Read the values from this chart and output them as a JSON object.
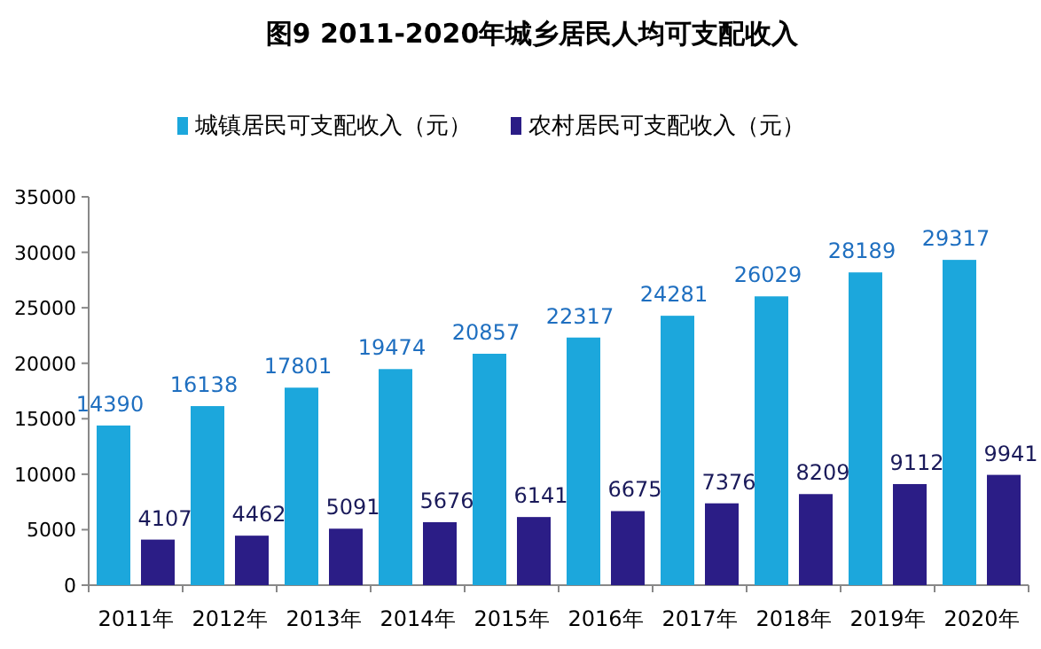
{
  "chart_data": {
    "type": "bar",
    "title": "图9  2011-2020年城乡居民人均可支配收入",
    "categories": [
      "2011年",
      "2012年",
      "2013年",
      "2014年",
      "2015年",
      "2016年",
      "2017年",
      "2018年",
      "2019年",
      "2020年"
    ],
    "series": [
      {
        "name": "城镇居民可支配收入（元）",
        "color": "#1ca7dc",
        "values": [
          14390,
          16138,
          17801,
          19474,
          20857,
          22317,
          24281,
          26029,
          28189,
          29317
        ]
      },
      {
        "name": "农村居民可支配收入（元）",
        "color": "#2b1d86",
        "values": [
          4107,
          4462,
          5091,
          5676,
          6141,
          6675,
          7376,
          8209,
          9112,
          9941
        ]
      }
    ],
    "ylim": [
      0,
      35000
    ],
    "yticks": [
      0,
      5000,
      10000,
      15000,
      20000,
      25000,
      30000,
      35000
    ],
    "legend": "top",
    "data_labels": true,
    "grid": false
  }
}
